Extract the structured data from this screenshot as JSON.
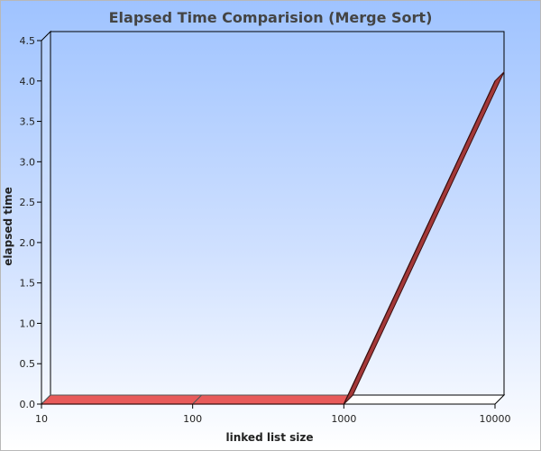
{
  "chart_data": {
    "type": "line",
    "title": "Elapsed Time Comparision (Merge Sort)",
    "xlabel": "linked list size",
    "ylabel": "elapsed time",
    "x_scale": "log",
    "x": [
      10,
      100,
      1000,
      10000
    ],
    "x_tick_labels": [
      "10",
      "100",
      "1000",
      "10000"
    ],
    "ylim": [
      0,
      4.5
    ],
    "y_ticks": [
      0.0,
      0.5,
      1.0,
      1.5,
      2.0,
      2.5,
      3.0,
      3.5,
      4.0,
      4.5
    ],
    "y_tick_labels": [
      "0.0",
      "0.5",
      "1.0",
      "1.5",
      "2.0",
      "2.5",
      "3.0",
      "3.5",
      "4.0",
      "4.5"
    ],
    "grid": false,
    "legend": "none",
    "series": [
      {
        "values": [
          0.0,
          0.0,
          0.0,
          4.0
        ],
        "color": "#e85a5a"
      }
    ]
  }
}
